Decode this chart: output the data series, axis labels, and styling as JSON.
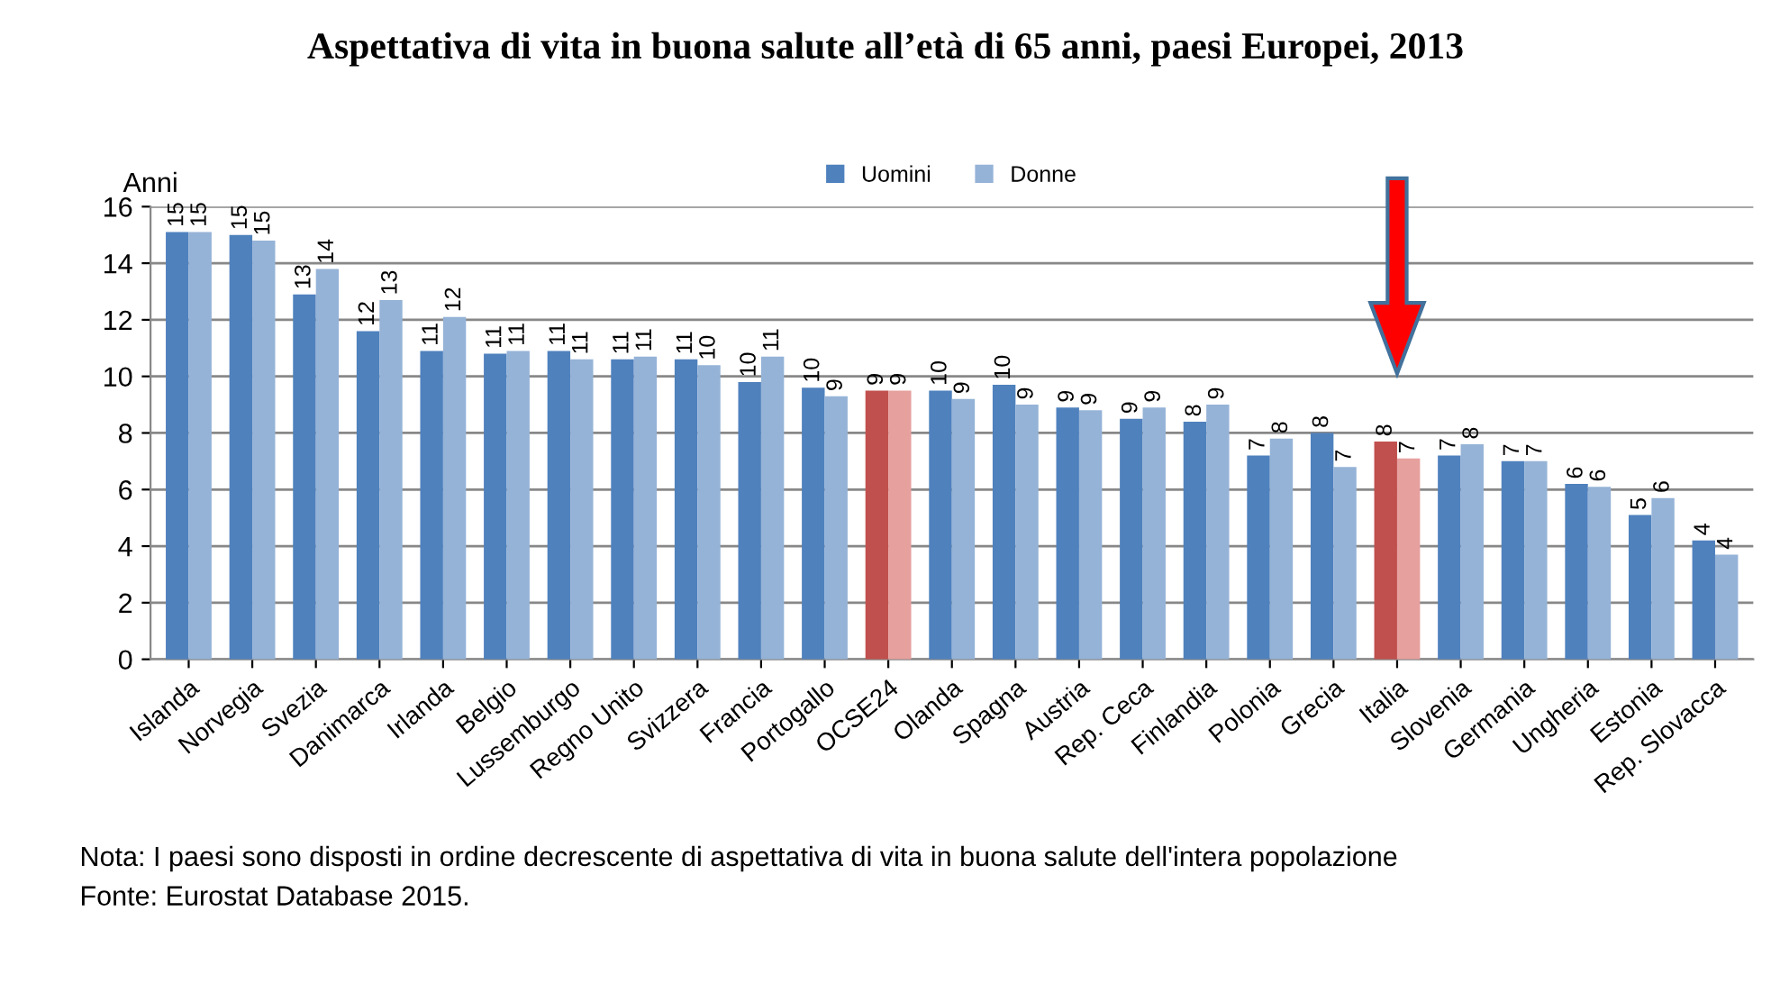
{
  "chart_data": {
    "type": "bar",
    "title": "Aspettativa di vita in buona salute all’età di 65 anni, paesi Europei, 2013",
    "ylabel": "Anni",
    "categories": [
      "Islanda",
      "Norvegia",
      "Svezia",
      "Danimarca",
      "Irlanda",
      "Belgio",
      "Lussemburgo",
      "Regno Unito",
      "Svizzera",
      "Francia",
      "Portogallo",
      "OCSE24",
      "Olanda",
      "Spagna",
      "Austria",
      "Rep. Ceca",
      "Finlandia",
      "Polonia",
      "Grecia",
      "Italia",
      "Slovenia",
      "Germania",
      "Ungheria",
      "Estonia",
      "Rep. Slovacca"
    ],
    "series": [
      {
        "name": "Uomini",
        "color": "#4f81bd",
        "colors": [
          "#4f81bd",
          "#4f81bd",
          "#4f81bd",
          "#4f81bd",
          "#4f81bd",
          "#4f81bd",
          "#4f81bd",
          "#4f81bd",
          "#4f81bd",
          "#4f81bd",
          "#4f81bd",
          "#c0504d",
          "#4f81bd",
          "#4f81bd",
          "#4f81bd",
          "#4f81bd",
          "#4f81bd",
          "#4f81bd",
          "#4f81bd",
          "#c0504d",
          "#4f81bd",
          "#4f81bd",
          "#4f81bd",
          "#4f81bd",
          "#4f81bd"
        ],
        "values": [
          15.1,
          15.0,
          12.9,
          11.6,
          10.9,
          10.8,
          10.9,
          10.6,
          10.6,
          9.8,
          9.6,
          9.5,
          9.5,
          9.7,
          8.9,
          8.5,
          8.4,
          7.2,
          8.0,
          7.7,
          7.2,
          7.0,
          6.2,
          5.1,
          4.2
        ],
        "value_labels": [
          "15",
          "15",
          "13",
          "12",
          "11",
          "11",
          "11",
          "11",
          "11",
          "10",
          "10",
          "9",
          "10",
          "10",
          "9",
          "9",
          "8",
          "7",
          "8",
          "8",
          "7",
          "7",
          "6",
          "5",
          "4"
        ]
      },
      {
        "name": "Donne",
        "color": "#95b3d7",
        "colors": [
          "#95b3d7",
          "#95b3d7",
          "#95b3d7",
          "#95b3d7",
          "#95b3d7",
          "#95b3d7",
          "#95b3d7",
          "#95b3d7",
          "#95b3d7",
          "#95b3d7",
          "#95b3d7",
          "#e6a09e",
          "#95b3d7",
          "#95b3d7",
          "#95b3d7",
          "#95b3d7",
          "#95b3d7",
          "#95b3d7",
          "#95b3d7",
          "#e6a09e",
          "#95b3d7",
          "#95b3d7",
          "#95b3d7",
          "#95b3d7",
          "#95b3d7"
        ],
        "values": [
          15.1,
          14.8,
          13.8,
          12.7,
          12.1,
          10.9,
          10.6,
          10.7,
          10.4,
          10.7,
          9.3,
          9.5,
          9.2,
          9.0,
          8.8,
          8.9,
          9.0,
          7.8,
          6.8,
          7.1,
          7.6,
          7.0,
          6.1,
          5.7,
          3.7
        ],
        "value_labels": [
          "15",
          "15",
          "14",
          "13",
          "12",
          "11",
          "11",
          "11",
          "10",
          "11",
          "9",
          "9",
          "9",
          "9",
          "9",
          "9",
          "9",
          "8",
          "7",
          "7",
          "8",
          "7",
          "6",
          "6",
          "4"
        ]
      }
    ],
    "ylim": [
      0,
      16
    ],
    "yticks": [
      0,
      2,
      4,
      6,
      8,
      10,
      12,
      14,
      16
    ],
    "grid": "y",
    "legend": "top",
    "annotations": [
      "Nota: I paesi sono disposti in ordine decrescente di aspettativa di vita in buona salute dell'intera popolazione",
      "Fonte: Eurostat Database 2015."
    ]
  }
}
